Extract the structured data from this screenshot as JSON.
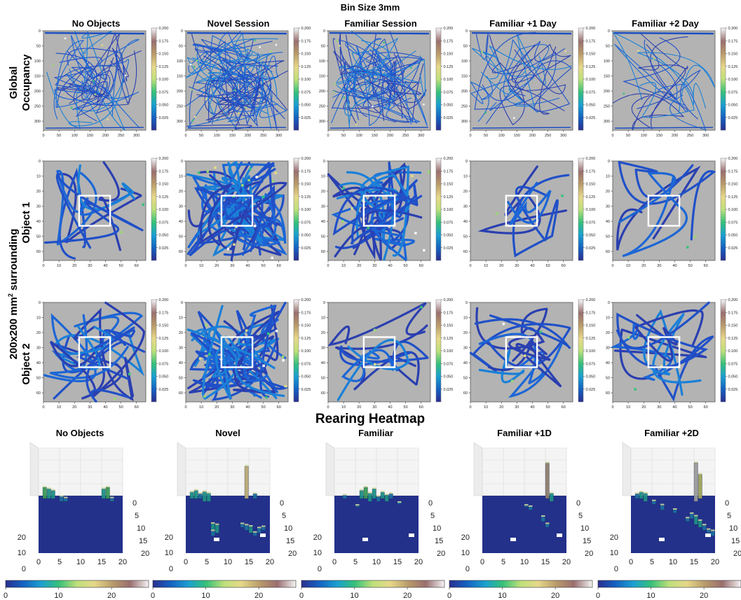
{
  "figure": {
    "suptitle": "Bin Size 3mm",
    "column_titles": [
      "No Objects",
      "Novel Session",
      "Familiar Session",
      "Familiar +1 Day",
      "Familiar +2 Day"
    ],
    "row_labels": {
      "global": [
        "Global",
        "Occupancy"
      ],
      "surround": "200x200 mm",
      "surround_sup": "2",
      "surround_rest": " surrounding",
      "object1": "Object 1",
      "object2": "Object 2"
    },
    "rearing_title": "Rearing Heatmap",
    "rearing_titles": [
      "No Objects",
      "Novel",
      "Familiar",
      "Familiar +1D",
      "Familiar +2D"
    ]
  },
  "chart_data": [
    {
      "type": "heatmap",
      "name": "global-occupancy",
      "xlim": [
        0,
        330
      ],
      "ylim": [
        330,
        0
      ],
      "x_ticks": [
        0,
        50,
        100,
        150,
        200,
        250,
        300
      ],
      "y_ticks": [
        0,
        50,
        100,
        150,
        200,
        250,
        300
      ],
      "colorbar_ticks": [
        "0.025",
        "0.050",
        "0.075",
        "0.100",
        "0.125",
        "0.150",
        "0.175",
        "0.200"
      ],
      "colorbar_range": [
        0,
        0.2
      ],
      "panels": [
        "No Objects",
        "Novel Session",
        "Familiar Session",
        "Familiar +1 Day",
        "Familiar +2 Day"
      ]
    },
    {
      "type": "heatmap",
      "name": "object-1-surround",
      "xlim": [
        0,
        66
      ],
      "ylim": [
        66,
        0
      ],
      "x_ticks": [
        0,
        10,
        20,
        30,
        40,
        50,
        60
      ],
      "y_ticks": [
        0,
        10,
        20,
        30,
        40,
        50,
        60
      ],
      "object_square": [
        23,
        23,
        43,
        43
      ],
      "colorbar_ticks": [
        "0.025",
        "0.050",
        "0.075",
        "0.100",
        "0.125",
        "0.150",
        "0.175",
        "0.200"
      ],
      "colorbar_range": [
        0,
        0.2
      ]
    },
    {
      "type": "heatmap",
      "name": "object-2-surround",
      "xlim": [
        0,
        66
      ],
      "ylim": [
        66,
        0
      ],
      "x_ticks": [
        0,
        10,
        20,
        30,
        40,
        50,
        60
      ],
      "y_ticks": [
        0,
        10,
        20,
        30,
        40,
        50,
        60
      ],
      "object_square": [
        23,
        23,
        43,
        43
      ],
      "colorbar_ticks": [
        "0.025",
        "0.050",
        "0.075",
        "0.100",
        "0.125",
        "0.150",
        "0.175",
        "0.200"
      ],
      "colorbar_range": [
        0,
        0.2
      ]
    },
    {
      "type": "bar",
      "name": "rearing-heatmap-3d",
      "grid_ticks": [
        0,
        5,
        10,
        15,
        20
      ],
      "z_ticks": [
        10,
        20
      ],
      "colorbar_ticks": [
        0,
        10,
        20
      ],
      "colorbar_range": [
        0,
        27
      ],
      "panels": [
        {
          "title": "No Objects",
          "bars": [
            [
              1,
              19,
              7
            ],
            [
              2,
              19,
              6
            ],
            [
              3,
              19,
              5
            ],
            [
              5,
              18,
              3
            ],
            [
              6,
              18,
              2
            ],
            [
              15,
              19,
              6
            ],
            [
              16,
              19,
              7
            ],
            [
              17,
              18,
              2
            ]
          ]
        },
        {
          "title": "Novel",
          "bars": [
            [
              1,
              19,
              4
            ],
            [
              2,
              19,
              5
            ],
            [
              3,
              19,
              3
            ],
            [
              4,
              18,
              6
            ],
            [
              5,
              18,
              5
            ],
            [
              14,
              19,
              20
            ],
            [
              16,
              19,
              3
            ],
            [
              6,
              8,
              4
            ],
            [
              7,
              7,
              5
            ],
            [
              6,
              6,
              3
            ],
            [
              14,
              8,
              3
            ],
            [
              15,
              7,
              4
            ],
            [
              16,
              6,
              2
            ],
            [
              17,
              7,
              3
            ],
            [
              18,
              8,
              2
            ],
            [
              13,
              9,
              2
            ]
          ]
        },
        {
          "title": "Familiar",
          "bars": [
            [
              2,
              19,
              2
            ],
            [
              6,
              19,
              5
            ],
            [
              7,
              19,
              7
            ],
            [
              8,
              18,
              5
            ],
            [
              9,
              19,
              6
            ],
            [
              10,
              18,
              3
            ],
            [
              11,
              19,
              4
            ],
            [
              12,
              18,
              4
            ],
            [
              13,
              19,
              3
            ],
            [
              5,
              16,
              1
            ],
            [
              15,
              17,
              1
            ]
          ]
        },
        {
          "title": "Familiar +1D",
          "bars": [
            [
              15,
              19,
              22
            ],
            [
              16,
              18,
              5
            ],
            [
              10,
              16,
              1
            ],
            [
              11,
              15,
              2
            ],
            [
              14,
              11,
              3
            ],
            [
              15,
              9,
              2
            ]
          ]
        },
        {
          "title": "Familiar +2D",
          "bars": [
            [
              1,
              19,
              3
            ],
            [
              2,
              19,
              4
            ],
            [
              3,
              18,
              5
            ],
            [
              5,
              17,
              2
            ],
            [
              7,
              15,
              3
            ],
            [
              10,
              14,
              2
            ],
            [
              15,
              18,
              24
            ],
            [
              16,
              19,
              15
            ],
            [
              14,
              12,
              3
            ],
            [
              15,
              10,
              5
            ],
            [
              16,
              9,
              4
            ],
            [
              17,
              8,
              3
            ],
            [
              18,
              7,
              2
            ],
            [
              19,
              6,
              3
            ],
            [
              13,
              11,
              2
            ]
          ]
        }
      ]
    }
  ]
}
